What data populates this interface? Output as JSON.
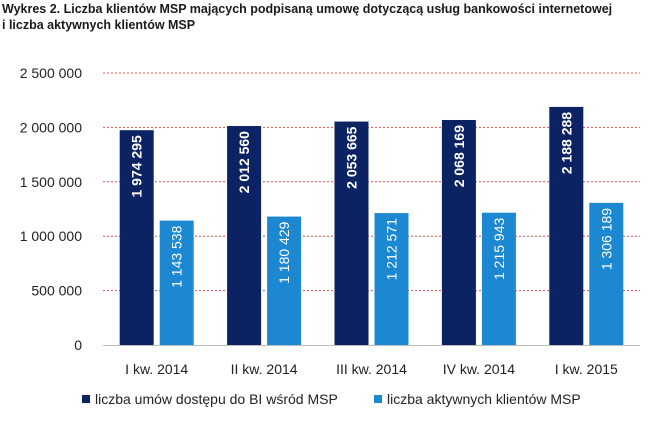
{
  "title_line1": "Wykres 2. Liczba klientów MSP mających podpisaną umowę dotyczącą usług bankowości internetowej",
  "title_line2": "i liczba aktywnych klientów MSP",
  "colors": {
    "series1": "#0b2263",
    "series2": "#1c88d1",
    "grid": "#d9534f"
  },
  "chart_data": {
    "type": "bar",
    "categories": [
      "I kw. 2014",
      "II kw. 2014",
      "III kw. 2014",
      "IV kw. 2014",
      "I kw. 2015"
    ],
    "series": [
      {
        "name": "liczba umów dostępu do BI wśród MSP",
        "values": [
          1974295,
          2012560,
          2053665,
          2068169,
          2188288
        ],
        "labels": [
          "1 974 295",
          "2 012 560",
          "2 053 665",
          "2 068 169",
          "2 188 288"
        ]
      },
      {
        "name": "liczba aktywnych klientów MSP",
        "values": [
          1143538,
          1180429,
          1212571,
          1215943,
          1306189
        ],
        "labels": [
          "1 143 538",
          "1 180 429",
          "1 212 571",
          "1 215 943",
          "1 306 189"
        ]
      }
    ],
    "ylim": [
      0,
      2500000
    ],
    "yticks": [
      0,
      500000,
      1000000,
      1500000,
      2000000,
      2500000
    ],
    "ytick_labels": [
      "0",
      "500 000",
      "1 000 000",
      "1 500 000",
      "2 000 000",
      "2 500 000"
    ],
    "grid": true,
    "legend_position": "bottom"
  }
}
